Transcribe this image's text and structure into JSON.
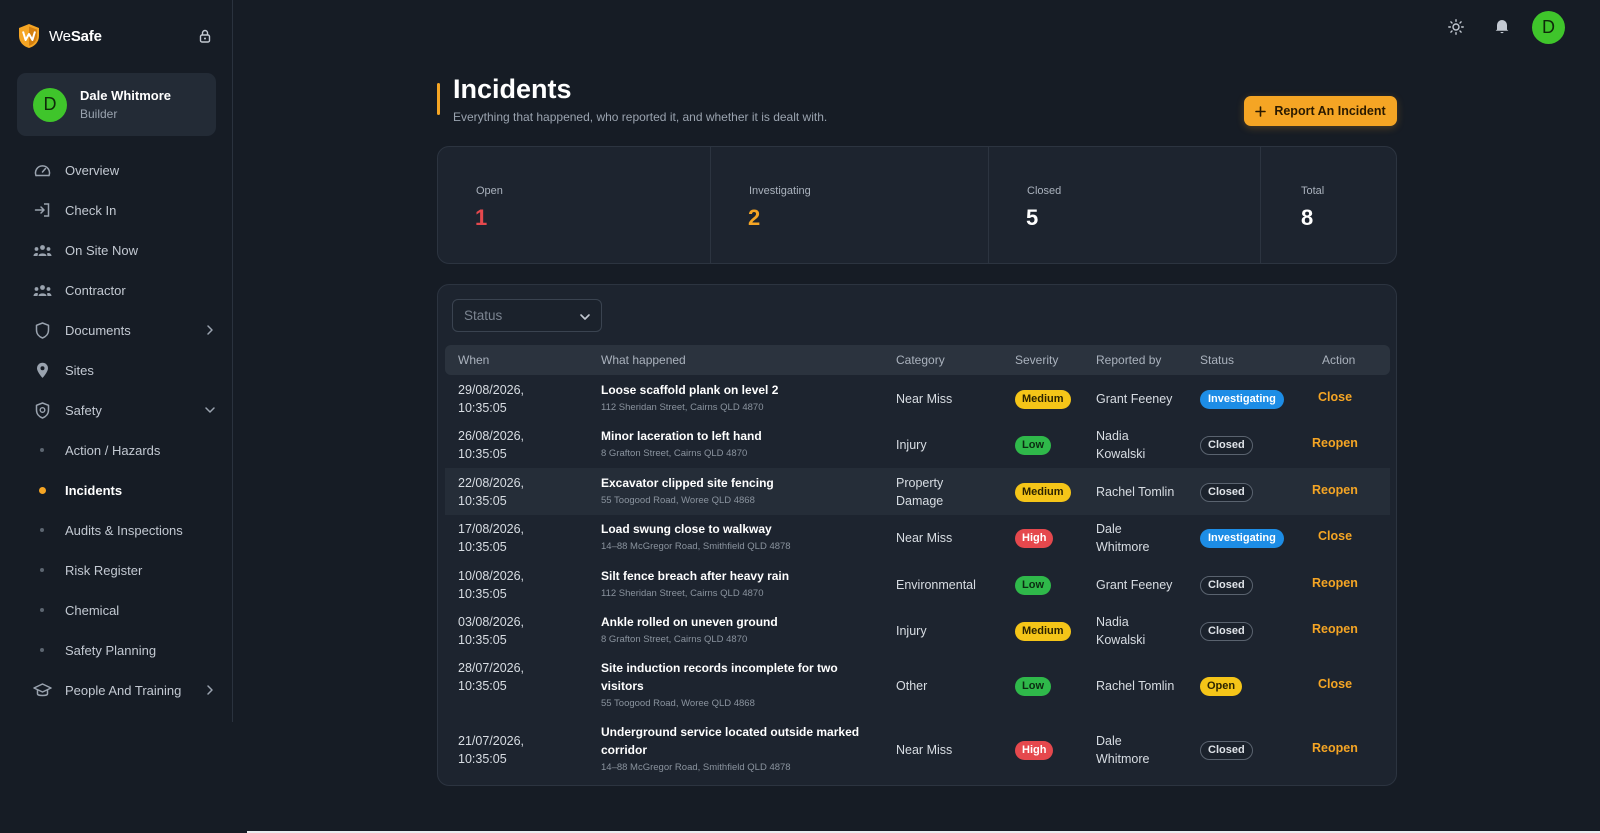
{
  "brand": {
    "name_light": "We",
    "name_bold": "Safe"
  },
  "user": {
    "initial": "D",
    "name": "Dale Whitmore",
    "role": "Builder"
  },
  "nav": {
    "overview": "Overview",
    "check_in": "Check In",
    "on_site_now": "On Site Now",
    "contractor": "Contractor",
    "documents": "Documents",
    "sites": "Sites",
    "safety": "Safety",
    "action_hazards": "Action / Hazards",
    "incidents": "Incidents",
    "audits": "Audits & Inspections",
    "risk_register": "Risk Register",
    "chemical": "Chemical",
    "safety_planning": "Safety Planning",
    "people_training": "People And Training"
  },
  "page": {
    "title": "Incidents",
    "subtitle": "Everything that happened, who reported it, and whether it is dealt with.",
    "report_button": "Report An Incident"
  },
  "stats": [
    {
      "label": "Open",
      "value": "1",
      "color": "#e5484d"
    },
    {
      "label": "Investigating",
      "value": "2",
      "color": "#f5a524"
    },
    {
      "label": "Closed",
      "value": "5",
      "color": "#ffffff"
    },
    {
      "label": "Total",
      "value": "8",
      "color": "#ffffff"
    }
  ],
  "filter": {
    "status_placeholder": "Status"
  },
  "table": {
    "headers": {
      "when": "When",
      "what": "What happened",
      "category": "Category",
      "severity": "Severity",
      "reported_by": "Reported by",
      "status": "Status",
      "action": "Action"
    },
    "rows": [
      {
        "date": "29/08/2026,",
        "time": "10:35:05",
        "title": "Loose scaffold plank on level 2",
        "address": "112 Sheridan Street, Cairns QLD 4870",
        "category": "Near Miss",
        "severity": "Medium",
        "reporter": "Grant Feeney",
        "status": "Investigating",
        "action": "Close"
      },
      {
        "date": "26/08/2026,",
        "time": "10:35:05",
        "title": "Minor laceration to left hand",
        "address": "8 Grafton Street, Cairns QLD 4870",
        "category": "Injury",
        "severity": "Low",
        "reporter_l1": "Nadia",
        "reporter_l2": "Kowalski",
        "status": "Closed",
        "action": "Reopen"
      },
      {
        "date": "22/08/2026,",
        "time": "10:35:05",
        "title": "Excavator clipped site fencing",
        "address": "55 Toogood Road, Woree QLD 4868",
        "category_l1": "Property",
        "category_l2": "Damage",
        "severity": "Medium",
        "reporter": "Rachel Tomlin",
        "status": "Closed",
        "action": "Reopen"
      },
      {
        "date": "17/08/2026,",
        "time": "10:35:05",
        "title": "Load swung close to walkway",
        "address": "14–88 McGregor Road, Smithfield QLD 4878",
        "category": "Near Miss",
        "severity": "High",
        "reporter_l1": "Dale",
        "reporter_l2": "Whitmore",
        "status": "Investigating",
        "action": "Close"
      },
      {
        "date": "10/08/2026,",
        "time": "10:35:05",
        "title": "Silt fence breach after heavy rain",
        "address": "112 Sheridan Street, Cairns QLD 4870",
        "category": "Environmental",
        "severity": "Low",
        "reporter": "Grant Feeney",
        "status": "Closed",
        "action": "Reopen"
      },
      {
        "date": "03/08/2026,",
        "time": "10:35:05",
        "title": "Ankle rolled on uneven ground",
        "address": "8 Grafton Street, Cairns QLD 4870",
        "category": "Injury",
        "severity": "Medium",
        "reporter_l1": "Nadia",
        "reporter_l2": "Kowalski",
        "status": "Closed",
        "action": "Reopen"
      },
      {
        "date": "28/07/2026,",
        "time": "10:35:05",
        "title_l1": "Site induction records incomplete for two",
        "title_l2": "visitors",
        "address": "55 Toogood Road, Woree QLD 4868",
        "category": "Other",
        "severity": "Low",
        "reporter": "Rachel Tomlin",
        "status": "Open",
        "action": "Close"
      },
      {
        "date": "21/07/2026,",
        "time": "10:35:05",
        "title_l1": "Underground service located outside marked",
        "title_l2": "corridor",
        "address": "14–88 McGregor Road, Smithfield QLD 4878",
        "category": "Near Miss",
        "severity": "High",
        "reporter_l1": "Dale",
        "reporter_l2": "Whitmore",
        "status": "Closed",
        "action": "Reopen"
      }
    ]
  }
}
